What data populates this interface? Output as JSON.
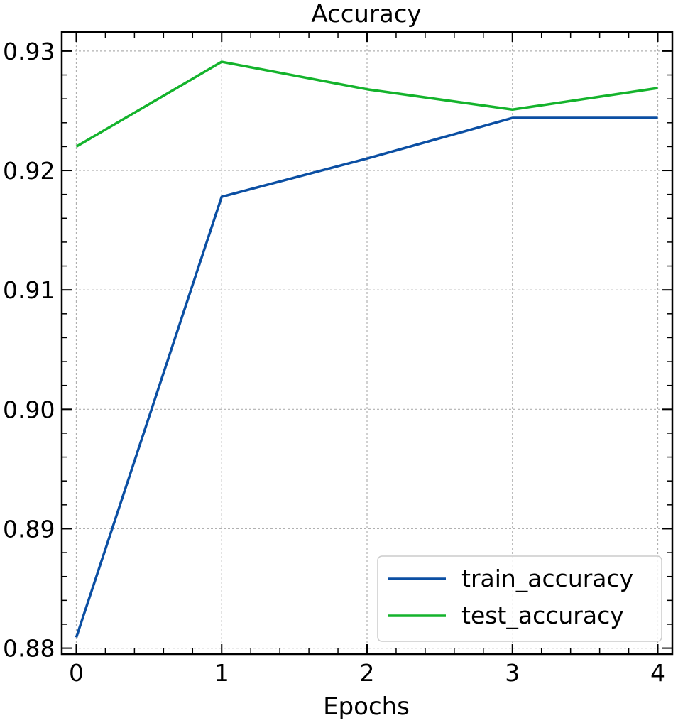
{
  "chart_data": {
    "type": "line",
    "title": "Accuracy",
    "xlabel": "Epochs",
    "ylabel": "",
    "x": [
      0,
      1,
      2,
      3,
      4
    ],
    "xticks": [
      0,
      1,
      2,
      3,
      4
    ],
    "xtick_labels": [
      "0",
      "1",
      "2",
      "3",
      "4"
    ],
    "yticks": [
      0.88,
      0.89,
      0.9,
      0.91,
      0.92,
      0.93
    ],
    "ytick_labels": [
      "0.88",
      "0.89",
      "0.90",
      "0.91",
      "0.92",
      "0.93"
    ],
    "xlim": [
      -0.1,
      4.1
    ],
    "ylim": [
      0.8795,
      0.9316
    ],
    "grid": true,
    "legend_position": "lower-right",
    "series": [
      {
        "name": "train_accuracy",
        "color": "#0b4fa3",
        "values": [
          0.8809,
          0.9178,
          0.921,
          0.9244,
          0.9244
        ]
      },
      {
        "name": "test_accuracy",
        "color": "#14b32c",
        "values": [
          0.922,
          0.9291,
          0.9268,
          0.9251,
          0.9269
        ]
      }
    ]
  }
}
